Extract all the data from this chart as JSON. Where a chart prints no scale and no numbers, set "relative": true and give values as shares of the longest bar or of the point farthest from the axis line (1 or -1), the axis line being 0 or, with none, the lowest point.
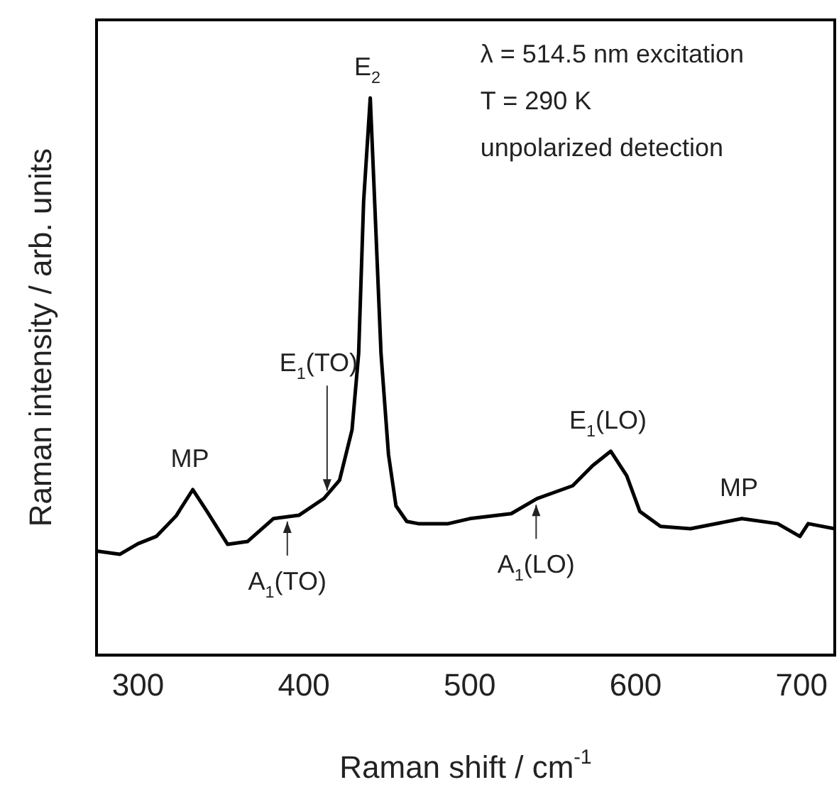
{
  "chart_data": {
    "type": "line",
    "relative": true,
    "xlabel": "Raman shift / cm$^{-1}$",
    "ylabel": "Raman intensity / arb. units",
    "xlim": [
      275,
      720
    ],
    "xticks": [
      300,
      400,
      500,
      600,
      700
    ],
    "x": [
      275,
      289,
      300,
      311,
      323,
      333,
      341.6,
      354,
      366,
      381.6,
      397,
      412,
      421.5,
      429,
      433,
      436,
      440,
      442,
      446.5,
      451,
      455.5,
      462,
      469,
      487,
      500,
      525,
      540.5,
      562,
      574,
      585,
      594.6,
      602.5,
      615,
      633,
      664,
      685.6,
      699,
      704,
      720
    ],
    "series": [
      {
        "color": "#000000",
        "values": [
          0.187,
          0.181,
          0.2,
          0.213,
          0.25,
          0.297,
          0.258,
          0.199,
          0.204,
          0.245,
          0.251,
          0.281,
          0.314,
          0.404,
          0.541,
          0.814,
          1,
          0.86,
          0.541,
          0.36,
          0.268,
          0.24,
          0.236,
          0.236,
          0.245,
          0.254,
          0.281,
          0.304,
          0.34,
          0.366,
          0.322,
          0.258,
          0.231,
          0.227,
          0.245,
          0.236,
          0.213,
          0.236,
          0.227
        ]
      }
    ],
    "annotations": [
      {
        "text": "E$_{2}$",
        "x": 440,
        "y": 1
      },
      {
        "text": "E$_{1}$(TO)",
        "x": 414,
        "y": 0.28
      },
      {
        "text": "A$_{1}$(TO)",
        "x": 390,
        "y": 0.25
      },
      {
        "text": "MP",
        "x": 333,
        "y": 0.297
      },
      {
        "text": "E$_{1}$(LO)",
        "x": 585,
        "y": 0.366
      },
      {
        "text": "A$_{1}$(LO)",
        "x": 540,
        "y": 0.28
      },
      {
        "text": "MP",
        "x": 664,
        "y": 0.245
      },
      "λ = 514.5 nm excitation",
      "T = 290 K",
      "unpolarized detection"
    ],
    "legend": false,
    "grid": false,
    "marker": "none",
    "line_style": "solid"
  }
}
